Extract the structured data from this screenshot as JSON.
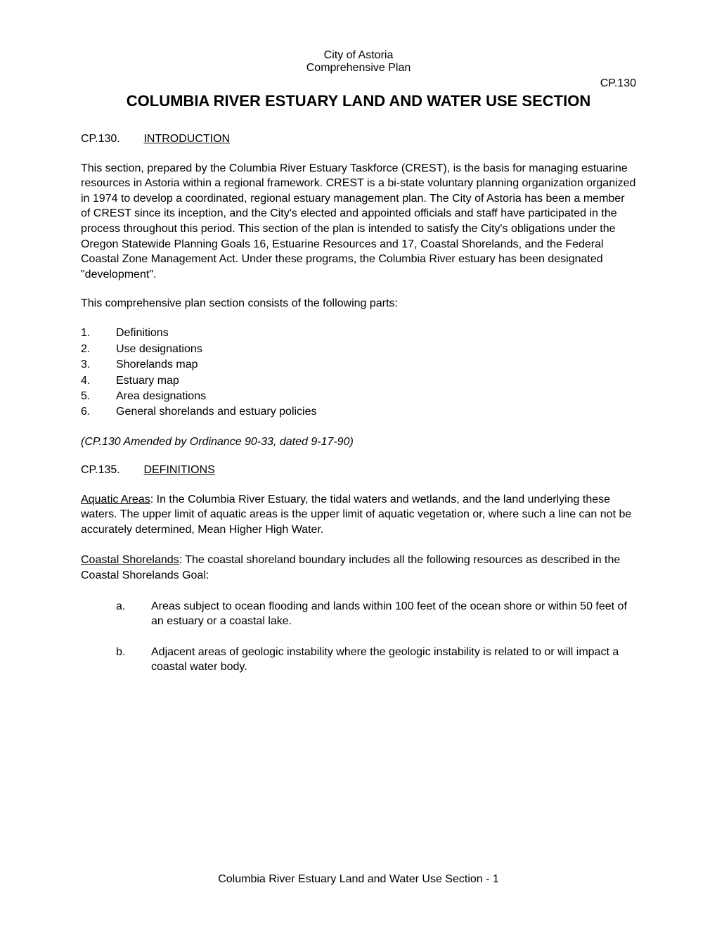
{
  "header": {
    "org": "City of Astoria",
    "subtitle": "Comprehensive Plan"
  },
  "code_top": "CP.130",
  "main_title": "COLUMBIA RIVER ESTUARY LAND AND WATER USE SECTION",
  "section_intro": {
    "code": "CP.130.",
    "title": "INTRODUCTION"
  },
  "para_intro": "This section, prepared by the Columbia River Estuary Taskforce (CREST), is the basis for managing estuarine resources in Astoria within a regional framework. CREST is a bi-state voluntary planning organization organized in 1974 to develop a coordinated, regional estuary management plan.  The City of Astoria has been a member of CREST since its inception, and the City's elected and appointed officials and staff have participated in the process throughout this period.  This section of the plan is intended to satisfy the City's obligations under the Oregon Statewide Planning Goals 16, Estuarine Resources and 17, Coastal Shorelands, and the Federal Coastal Zone Management Act. Under these programs, the Columbia River estuary has been designated \"development\".",
  "parts_intro": "This comprehensive plan section consists of the following parts:",
  "parts": [
    {
      "num": "1.",
      "text": "Definitions"
    },
    {
      "num": "2.",
      "text": "Use designations"
    },
    {
      "num": "3.",
      "text": "Shorelands map"
    },
    {
      "num": "4.",
      "text": "Estuary map"
    },
    {
      "num": "5.",
      "text": "Area designations"
    },
    {
      "num": "6.",
      "text": "General shorelands and estuary policies"
    }
  ],
  "amendment": "(CP.130 Amended by Ordinance 90-33, dated 9-17-90)",
  "section_defs": {
    "code": "CP.135.",
    "title": "DEFINITIONS"
  },
  "def_aquatic": {
    "term": "Aquatic Areas",
    "text": ":  In the Columbia River Estuary, the tidal waters and wetlands, and the land underlying these waters.  The upper limit of aquatic areas is the upper limit of aquatic vegetation or, where such a line can not be accurately determined, Mean Higher High Water."
  },
  "def_coastal": {
    "term": "Coastal Shorelands",
    "text": ":  The coastal shoreland boundary includes all the following resources as described in the Coastal Shorelands Goal:"
  },
  "coastal_sub": [
    {
      "letter": "a.",
      "text": "Areas subject to ocean flooding and lands within 100 feet of the ocean shore or within 50 feet of an estuary or a coastal lake."
    },
    {
      "letter": "b.",
      "text": "Adjacent areas of geologic instability where the geologic instability is related to or will impact a coastal water body."
    }
  ],
  "footer": "Columbia River Estuary Land and Water Use Section - 1"
}
